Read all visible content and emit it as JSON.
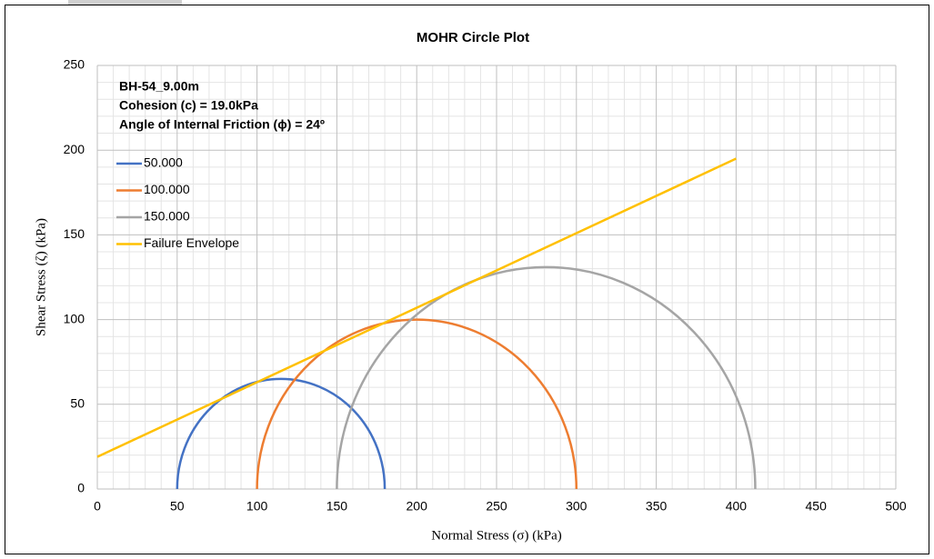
{
  "chart_data": {
    "type": "mohr",
    "title": "MOHR Circle Plot",
    "x_label": "Normal Stress (σ) (kPa)",
    "y_label": "Shear Stress (ζ) (kPa)",
    "annotations": [
      "BH-54_9.00m",
      "Cohesion (c) = 19.0kPa",
      "Angle of Internal Friction (ϕ) = 24º"
    ],
    "series": [
      {
        "name": "50.000",
        "color": "#4472c4",
        "sigma3": 50,
        "sigma1": 180
      },
      {
        "name": "100.000",
        "color": "#ed7d31",
        "sigma3": 100,
        "sigma1": 300
      },
      {
        "name": "150.000",
        "color": "#a5a5a5",
        "sigma3": 150,
        "sigma1": 412
      }
    ],
    "envelope": {
      "name": "Failure Envelope",
      "color": "#ffc000",
      "x": [
        0,
        400
      ],
      "values": [
        19,
        195
      ]
    },
    "xlim": [
      0,
      500
    ],
    "xticks": [
      0,
      50,
      100,
      150,
      200,
      250,
      300,
      350,
      400,
      450,
      500
    ],
    "ylim": [
      0,
      250
    ],
    "yticks": [
      0,
      50,
      100,
      150,
      200,
      250
    ],
    "grid": true,
    "legend": "upper left"
  }
}
